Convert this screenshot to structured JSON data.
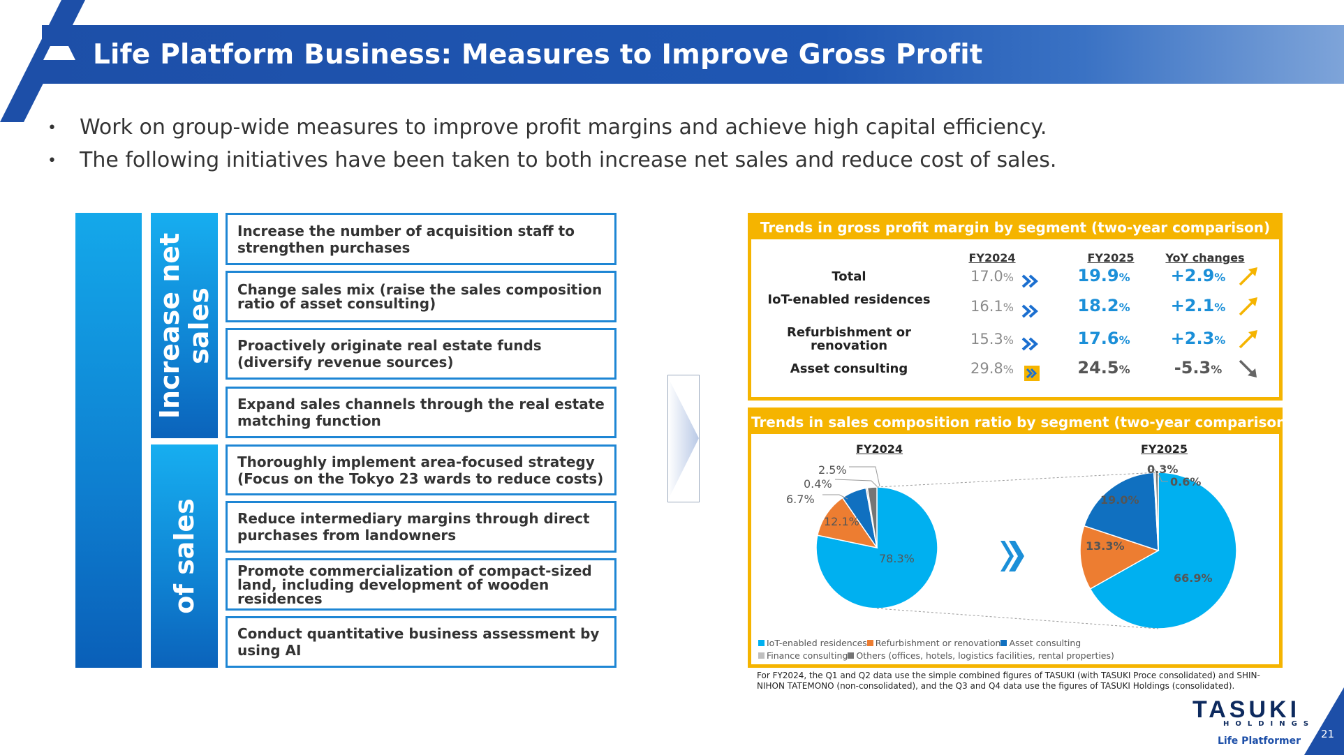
{
  "title": "Life Platform Business: Measures to Improve Gross Profit",
  "bullets": [
    "Work on group-wide measures to improve profit margins and achieve high capital efficiency.",
    "The following initiatives have been taken to both increase net sales and reduce cost of sales."
  ],
  "categories": {
    "net_sales": "Increase net sales",
    "net_sales_line1": "Increase net",
    "net_sales_line2": "sales",
    "cost": "of sales"
  },
  "measures": [
    "Increase the number of acquisition staff to strengthen purchases",
    "Change sales mix (raise the sales composition ratio of asset consulting)",
    "Proactively originate real estate funds (diversify revenue sources)",
    "Expand sales channels through the real estate matching function",
    "Thoroughly implement area-focused strategy (Focus on the Tokyo 23 wards to reduce costs)",
    "Reduce intermediary margins through direct purchases from landowners",
    "Promote commercialization of compact-sized land, including development of wooden residences",
    "Conduct quantitative business assessment by using AI"
  ],
  "margin_table": {
    "heading": "Trends in gross profit margin by segment (two-year comparison)",
    "col_fy2024": "FY2024",
    "col_fy2025": "FY2025",
    "col_yoy": "YoY changes",
    "rows": [
      {
        "segment": "Total",
        "fy2024": "17.0",
        "fy2025": "19.9",
        "yoy": "+2.9",
        "direction": "up"
      },
      {
        "segment": "IoT-enabled residences",
        "fy2024": "16.1",
        "fy2025": "18.2",
        "yoy": "+2.1",
        "direction": "up"
      },
      {
        "segment": "Refurbishment or renovation",
        "fy2024": "15.3",
        "fy2025": "17.6",
        "yoy": "+2.3",
        "direction": "up"
      },
      {
        "segment": "Asset consulting",
        "fy2024": "29.8",
        "fy2025": "24.5",
        "yoy": "-5.3",
        "direction": "down"
      }
    ],
    "unit": "%"
  },
  "composition": {
    "heading": "Trends in sales composition ratio by segment (two-year comparison)",
    "fy2024_label": "FY2024",
    "fy2025_label": "FY2025"
  },
  "chart_data": {
    "type": "pie",
    "categories": [
      "IoT-enabled residences",
      "Refurbishment or renovation",
      "Asset consulting",
      "Finance consulting",
      "Others (offices, hotels, logistics facilities, rental properties)"
    ],
    "colors": [
      "#00b0f0",
      "#ed7d31",
      "#1070c0",
      "#bfbfbf",
      "#757575"
    ],
    "series": [
      {
        "name": "FY2024",
        "values": [
          78.3,
          12.1,
          6.7,
          0.4,
          2.5
        ],
        "labels": [
          "78.3%",
          "12.1%",
          "6.7%",
          "0.4%",
          "2.5%"
        ]
      },
      {
        "name": "FY2025",
        "values": [
          66.9,
          13.3,
          19.0,
          0.3,
          0.6
        ],
        "labels": [
          "66.9%",
          "13.3%",
          "19.0%",
          "0.3%",
          "0.6%"
        ]
      }
    ],
    "legend": "bottom"
  },
  "footnote": "For FY2024, the Q1 and Q2 data use the simple combined figures of TASUKI (with TASUKI Proce consolidated) and SHIN-NIHON TATEMONO (non-consolidated), and the Q3 and Q4 data use the figures of TASUKI Holdings (consolidated).",
  "logo": {
    "name": "TASUKI",
    "sub": "HOLDINGS",
    "tagline": "Life Platformer"
  },
  "page_number": "21"
}
